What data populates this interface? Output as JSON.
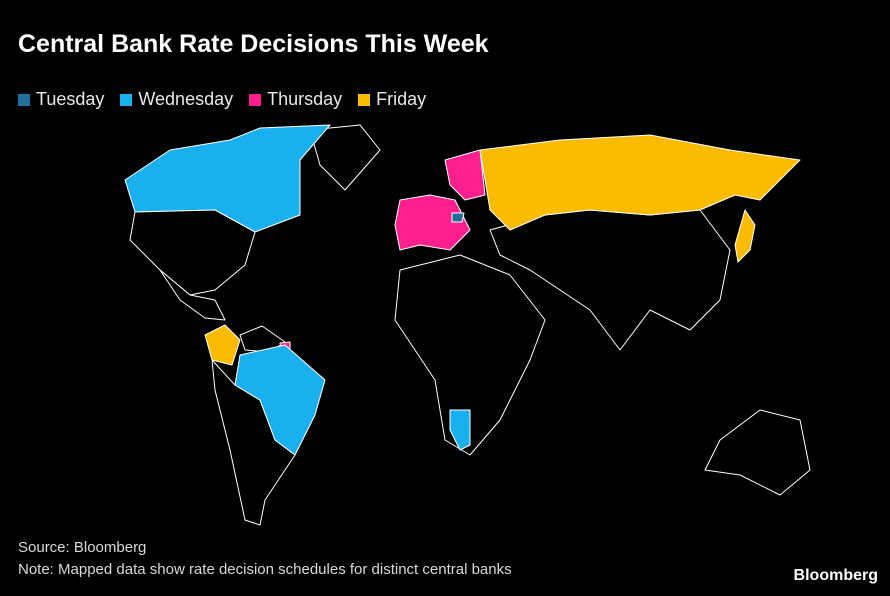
{
  "header": {
    "title": "Central Bank Rate Decisions This Week"
  },
  "legend": [
    {
      "label": "Tuesday",
      "color": "#1f6f9a"
    },
    {
      "label": "Wednesday",
      "color": "#1ab0f0"
    },
    {
      "label": "Thursday",
      "color": "#ff1f8f"
    },
    {
      "label": "Friday",
      "color": "#fdbb00"
    }
  ],
  "footer": {
    "source": "Source: Bloomberg",
    "note": "Note: Mapped data show rate decision schedules for distinct central banks",
    "brand": "Bloomberg"
  }
}
